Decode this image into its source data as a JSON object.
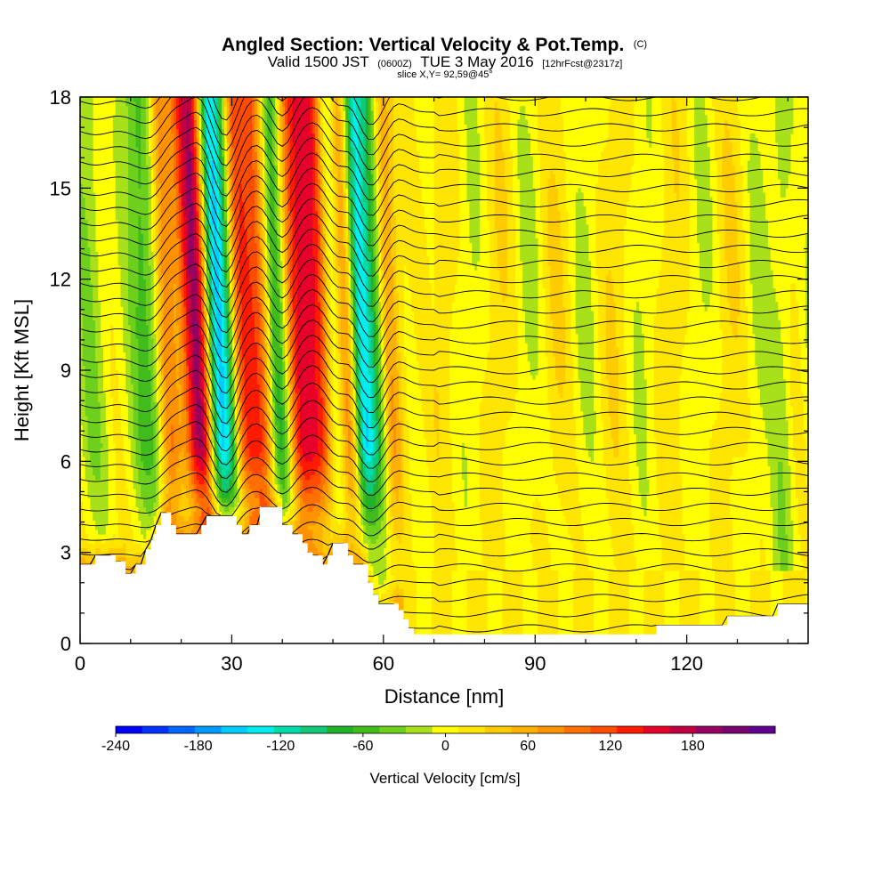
{
  "header": {
    "title_main": "Angled Section: Vertical Velocity & Pot.Temp.",
    "title_main_tag": "(C)",
    "valid_prefix": "Valid 1500 JST",
    "valid_utc": "(0600Z)",
    "valid_date": "TUE 3 May 2016",
    "forecast": "[12hrFcst@2317z]",
    "slice": "slice X,Y= 92,59@45°"
  },
  "chart_data": {
    "type": "heatmap",
    "xlabel": "Distance [nm]",
    "ylabel": "Height [Kft MSL]",
    "xlim": [
      0,
      144
    ],
    "ylim": [
      0,
      18
    ],
    "x_ticks": [
      0,
      30,
      60,
      90,
      120
    ],
    "y_ticks": [
      0,
      3,
      6,
      9,
      12,
      15,
      18
    ],
    "field": "Vertical Velocity",
    "units": "cm/s",
    "colorbar": {
      "title": "Vertical Velocity [cm/s]",
      "min": -240,
      "max": 220,
      "step": 20,
      "tick_values": [
        -240,
        -180,
        -120,
        -60,
        0,
        60,
        120,
        180
      ],
      "tick_labels": [
        "-240",
        "-180",
        "-120",
        "-60",
        "0",
        "60",
        "120",
        "180"
      ],
      "colors": [
        "#0000ff",
        "#0033ff",
        "#0066ff",
        "#0099ff",
        "#00ccff",
        "#00eeee",
        "#00dcaa",
        "#10c878",
        "#22b22a",
        "#40bc1c",
        "#6cd01c",
        "#a8e01a",
        "#ffff00",
        "#ffe500",
        "#ffcc00",
        "#ffb000",
        "#ff9200",
        "#ff7000",
        "#ff4c00",
        "#ff1a00",
        "#e8002a",
        "#c00040",
        "#960060",
        "#780070",
        "#600090"
      ]
    },
    "updrafts": [
      {
        "x": 24,
        "amp": 190,
        "sigma": 2.2
      },
      {
        "x": 33,
        "amp": 110,
        "sigma": 1.8
      },
      {
        "x": 36.5,
        "amp": 100,
        "sigma": 1.6
      },
      {
        "x": 44,
        "amp": 120,
        "sigma": 2.0
      },
      {
        "x": 48,
        "amp": 130,
        "sigma": 2.2
      },
      {
        "x": 53.5,
        "amp": 90,
        "sigma": 1.6
      },
      {
        "x": 62,
        "amp": 70,
        "sigma": 1.6
      },
      {
        "x": 18,
        "amp": 90,
        "sigma": 1.5
      }
    ],
    "downdrafts": [
      {
        "x": 27.5,
        "amp": -170,
        "sigma": 1.5
      },
      {
        "x": 30,
        "amp": -90,
        "sigma": 1.3
      },
      {
        "x": 40,
        "amp": -100,
        "sigma": 1.6
      },
      {
        "x": 51,
        "amp": -90,
        "sigma": 1.4
      },
      {
        "x": 56.5,
        "amp": -150,
        "sigma": 1.5
      },
      {
        "x": 59.5,
        "amp": -80,
        "sigma": 1.4
      },
      {
        "x": 14,
        "amp": -70,
        "sigma": 2.4
      },
      {
        "x": 3,
        "amp": -40,
        "sigma": 2.0
      },
      {
        "x": 139,
        "amp": -40,
        "sigma": 1.6
      }
    ],
    "terrain": [
      [
        0,
        2.6
      ],
      [
        3,
        2.6
      ],
      [
        3,
        2.9
      ],
      [
        7,
        2.9
      ],
      [
        7,
        2.7
      ],
      [
        9,
        2.7
      ],
      [
        9,
        2.3
      ],
      [
        11,
        2.3
      ],
      [
        11,
        2.6
      ],
      [
        13,
        2.6
      ],
      [
        13,
        3.1
      ],
      [
        14,
        3.1
      ],
      [
        14,
        3.4
      ],
      [
        14.5,
        3.4
      ],
      [
        14.5,
        3.6
      ],
      [
        15,
        3.6
      ],
      [
        15,
        3.9
      ],
      [
        16,
        3.9
      ],
      [
        16,
        4.3
      ],
      [
        18,
        4.3
      ],
      [
        18,
        3.9
      ],
      [
        19,
        3.9
      ],
      [
        19,
        3.6
      ],
      [
        24,
        3.6
      ],
      [
        24,
        3.9
      ],
      [
        25,
        3.9
      ],
      [
        25,
        4.2
      ],
      [
        31,
        4.2
      ],
      [
        31,
        3.9
      ],
      [
        32,
        3.9
      ],
      [
        32,
        3.6
      ],
      [
        33.5,
        3.6
      ],
      [
        33.5,
        3.9
      ],
      [
        35.5,
        3.9
      ],
      [
        35.5,
        4.5
      ],
      [
        40,
        4.5
      ],
      [
        40,
        3.9
      ],
      [
        42,
        3.9
      ],
      [
        42,
        3.6
      ],
      [
        44,
        3.6
      ],
      [
        44,
        3.3
      ],
      [
        45,
        3.3
      ],
      [
        45,
        3.0
      ],
      [
        46,
        3.0
      ],
      [
        46,
        2.9
      ],
      [
        48,
        2.9
      ],
      [
        48,
        2.6
      ],
      [
        49,
        2.6
      ],
      [
        49,
        2.9
      ],
      [
        50,
        2.9
      ],
      [
        50,
        3.3
      ],
      [
        53,
        3.3
      ],
      [
        53,
        2.9
      ],
      [
        54,
        2.9
      ],
      [
        54,
        2.6
      ],
      [
        57,
        2.6
      ],
      [
        57,
        2.0
      ],
      [
        58,
        2.0
      ],
      [
        58,
        1.6
      ],
      [
        59,
        1.6
      ],
      [
        59,
        1.3
      ],
      [
        63,
        1.3
      ],
      [
        63,
        1.1
      ],
      [
        64,
        1.1
      ],
      [
        64,
        0.8
      ],
      [
        65,
        0.8
      ],
      [
        65,
        0.5
      ],
      [
        66,
        0.5
      ],
      [
        66,
        0.3
      ],
      [
        114,
        0.3
      ],
      [
        114,
        0.6
      ],
      [
        128,
        0.6
      ],
      [
        128,
        0.9
      ],
      [
        138,
        0.9
      ],
      [
        138,
        1.3
      ],
      [
        144,
        1.3
      ]
    ],
    "theta_contours_note": "",
    "contour_label_values": [
      "",
      "",
      "",
      "",
      ""
    ]
  }
}
